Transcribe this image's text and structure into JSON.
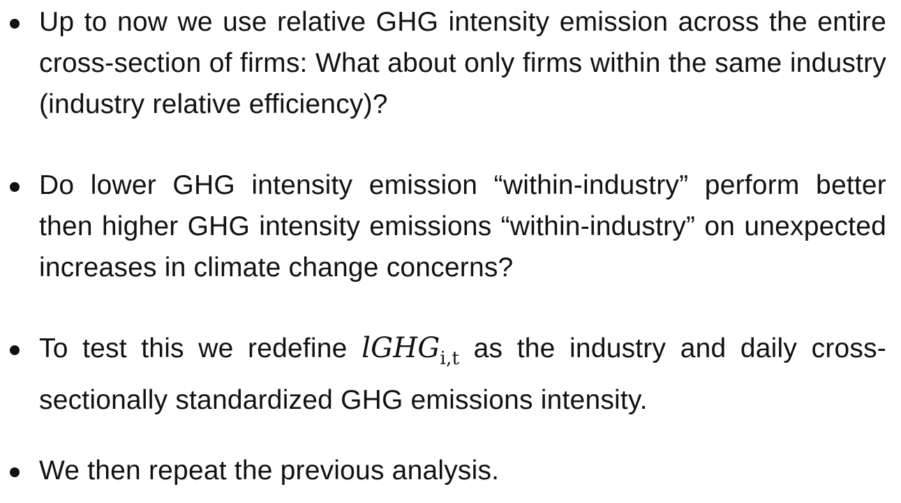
{
  "bullets": [
    {
      "text": "Up to now we use relative GHG intensity emission across the entire cross-section of firms: What about only firms within the same industry (industry relative efficiency)?"
    },
    {
      "text": "Do lower GHG intensity emission “within-industry” perform better then higher GHG intensity emissions “within-industry” on unexpected increases in climate change concerns?"
    },
    {
      "text_before": "To test this we redefine ",
      "math_var": "lGHG",
      "math_sub": "i,t",
      "text_after": " as the industry and daily cross-sectionally standardized GHG emissions intensity."
    },
    {
      "text": "We then repeat the previous analysis."
    }
  ]
}
